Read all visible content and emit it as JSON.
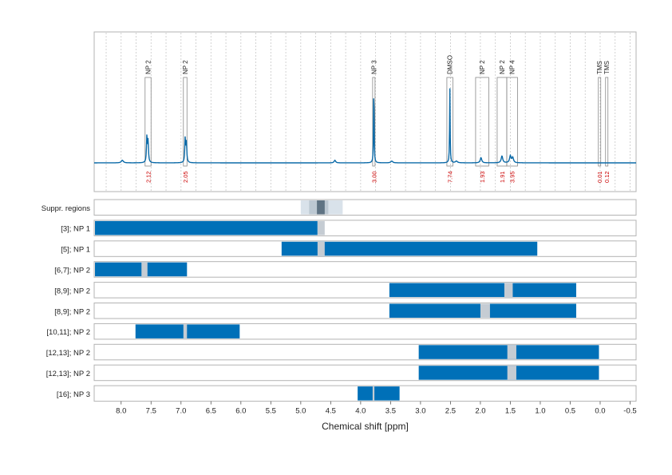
{
  "chart_data": {
    "type": "line",
    "xlabel": "Chemical shift [ppm]",
    "xlim": [
      8.45,
      -0.6
    ],
    "x_ticks": [
      "8.0",
      "7.5",
      "7.0",
      "6.5",
      "6.0",
      "5.5",
      "5.0",
      "4.5",
      "4.0",
      "3.5",
      "3.0",
      "2.5",
      "2.0",
      "1.5",
      "1.0",
      "0.5",
      "0.0",
      "-0.5"
    ],
    "x_tick_values": [
      8.0,
      7.5,
      7.0,
      6.5,
      6.0,
      5.5,
      5.0,
      4.5,
      4.0,
      3.5,
      3.0,
      2.5,
      2.0,
      1.5,
      1.0,
      0.5,
      0.0,
      -0.5
    ],
    "grid": true,
    "spectrum_color": "#0b6aa8",
    "accent_color": "#0070b8",
    "integral_label_color": "#cc0000",
    "spectrum": {
      "peaks": [
        {
          "x": 7.57,
          "h": 0.3,
          "w": 0.008
        },
        {
          "x": 7.55,
          "h": 0.25,
          "w": 0.008
        },
        {
          "x": 6.93,
          "h": 0.28,
          "w": 0.008
        },
        {
          "x": 6.91,
          "h": 0.23,
          "w": 0.008
        },
        {
          "x": 3.78,
          "h": 0.98,
          "w": 0.005
        },
        {
          "x": 2.51,
          "h": 0.88,
          "w": 0.005
        },
        {
          "x": 1.99,
          "h": 0.06,
          "w": 0.015
        },
        {
          "x": 1.64,
          "h": 0.08,
          "w": 0.015
        },
        {
          "x": 1.5,
          "h": 0.08,
          "w": 0.015
        },
        {
          "x": 1.46,
          "h": 0.06,
          "w": 0.015
        },
        {
          "x": 7.98,
          "h": 0.03,
          "w": 0.02
        },
        {
          "x": 4.43,
          "h": 0.03,
          "w": 0.015
        },
        {
          "x": 3.48,
          "h": 0.02,
          "w": 0.02
        },
        {
          "x": 2.4,
          "h": 0.02,
          "w": 0.02
        }
      ]
    },
    "annotations": [
      {
        "label": "NP 2",
        "from": 7.6,
        "to": 7.5,
        "integral": "2.12"
      },
      {
        "label": "NP 2",
        "from": 6.96,
        "to": 6.9,
        "integral": "2.05"
      },
      {
        "label": "NP 3",
        "from": 3.8,
        "to": 3.76,
        "integral": "3.00"
      },
      {
        "label": "DMSO",
        "from": 2.56,
        "to": 2.46,
        "integral": "7.74"
      },
      {
        "label": "NP 2",
        "from": 2.08,
        "to": 1.86,
        "integral": "1.93"
      },
      {
        "label": "NP 2",
        "from": 1.72,
        "to": 1.56,
        "integral": "1.91"
      },
      {
        "label": "NP 4",
        "from": 1.56,
        "to": 1.38,
        "integral": "3.95"
      },
      {
        "label": "TMS",
        "from": 0.03,
        "to": -0.01,
        "integral": "0.01"
      },
      {
        "label": "TMS",
        "from": -0.09,
        "to": -0.13,
        "integral": "0.12"
      }
    ],
    "rows": [
      {
        "label": "Suppr. regions",
        "kind": "suppr",
        "bands": [
          [
            5.0,
            4.3,
            "#d9e2ea"
          ],
          [
            4.86,
            4.54,
            "#bcc8d2"
          ],
          [
            4.73,
            4.6,
            "#5f7383"
          ]
        ]
      },
      {
        "label": "[3]; NP 1",
        "kind": "bar",
        "from": 8.45,
        "to": 4.72,
        "gaps": [
          [
            4.72,
            4.6
          ]
        ]
      },
      {
        "label": "[5]; NP 1",
        "kind": "bar",
        "from": 5.32,
        "to": 1.05,
        "gaps": [
          [
            4.72,
            4.6
          ]
        ]
      },
      {
        "label": "[6,7]; NP 2",
        "kind": "bar",
        "from": 8.45,
        "to": 6.9,
        "gaps": [
          [
            7.66,
            7.56
          ]
        ]
      },
      {
        "label": "[8,9]; NP 2",
        "kind": "bar",
        "from": 3.52,
        "to": 0.4,
        "gaps": [
          [
            1.6,
            1.46
          ]
        ]
      },
      {
        "label": "[8,9]; NP 2",
        "kind": "bar",
        "from": 3.52,
        "to": 0.4,
        "gaps": [
          [
            2.0,
            1.84
          ]
        ]
      },
      {
        "label": "[10,11]; NP 2",
        "kind": "bar",
        "from": 7.76,
        "to": 6.02,
        "gaps": [
          [
            6.96,
            6.9
          ]
        ]
      },
      {
        "label": "[12,13]; NP 2",
        "kind": "bar",
        "from": 3.03,
        "to": 0.02,
        "gaps": [
          [
            1.55,
            1.4
          ]
        ]
      },
      {
        "label": "[12,13]; NP 2",
        "kind": "bar",
        "from": 3.03,
        "to": 0.02,
        "gaps": [
          [
            1.55,
            1.4
          ]
        ]
      },
      {
        "label": "[16]; NP 3",
        "kind": "bar",
        "from": 4.05,
        "to": 3.35,
        "gaps": [
          [
            3.8,
            3.77
          ]
        ]
      }
    ]
  }
}
